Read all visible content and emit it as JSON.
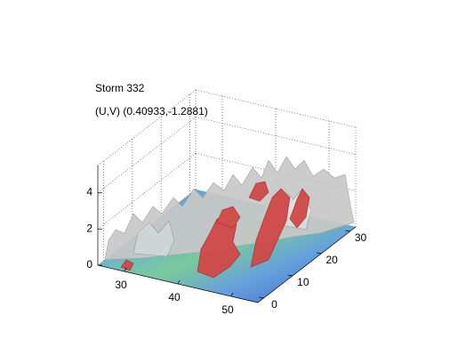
{
  "chart_data": {
    "type": "surface3d",
    "title": [
      "Storm 332",
      "(U,V) (0.40933,-1.2881)"
    ],
    "xlim": [
      25,
      55
    ],
    "xticks": [
      30,
      40,
      50
    ],
    "ylim": [
      -2,
      32
    ],
    "yticks": [
      0,
      10,
      20,
      30
    ],
    "zlim": [
      0,
      5.5
    ],
    "zticks": [
      0,
      2,
      4
    ],
    "grid": true
  }
}
